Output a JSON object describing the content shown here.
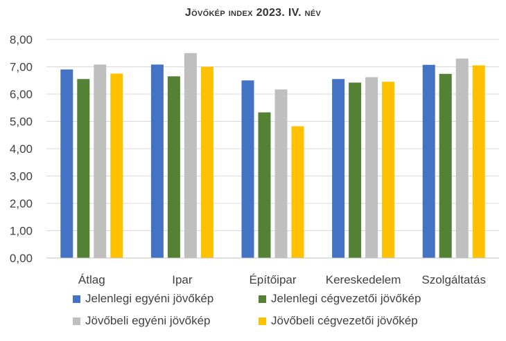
{
  "chart_data": {
    "type": "bar",
    "title": "Jövőkép index 2023. IV. név",
    "categories": [
      "Átlag",
      "Ipar",
      "Építőipar",
      "Kereskedelem",
      "Szolgáltatás"
    ],
    "series": [
      {
        "name": "Jelenlegi egyéni jövőkép",
        "color": "#4472C4",
        "values": [
          6.9,
          7.08,
          6.5,
          6.55,
          7.07
        ]
      },
      {
        "name": "Jelenlegi cégvezetői jövőkép",
        "color": "#548235",
        "values": [
          6.55,
          6.65,
          5.33,
          6.42,
          6.74
        ]
      },
      {
        "name": "Jövőbeli egyéni jövőkép",
        "color": "#BFBFBF",
        "values": [
          7.08,
          7.5,
          6.17,
          6.62,
          7.3
        ]
      },
      {
        "name": "Jövőbeli cégvezetői jövőkép",
        "color": "#FFC000",
        "values": [
          6.75,
          7.0,
          4.82,
          6.45,
          7.05
        ]
      }
    ],
    "ylim": [
      0,
      8
    ],
    "yticks": [
      "0,00",
      "1,00",
      "2,00",
      "3,00",
      "4,00",
      "5,00",
      "6,00",
      "7,00",
      "8,00"
    ],
    "ytick_values": [
      0,
      1,
      2,
      3,
      4,
      5,
      6,
      7,
      8
    ],
    "grid": true,
    "legend_position": "bottom"
  }
}
